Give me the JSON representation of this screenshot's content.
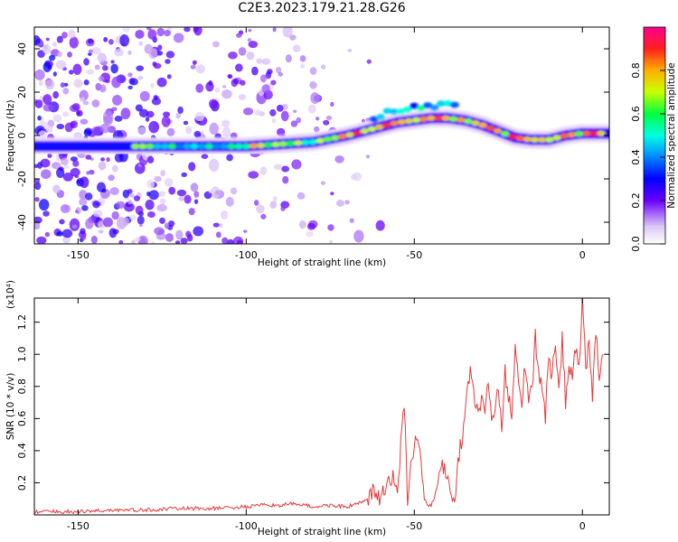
{
  "title": "C2E3.2023.179.21.28.G26",
  "colors": {
    "snr_line": "#e8383a",
    "axes": "#000000",
    "background": "#ffffff"
  },
  "chart_data": [
    {
      "type": "heatmap",
      "xlabel": "Height of straight line (km)",
      "ylabel": "Frequency (Hz)",
      "xlim": [
        -163,
        8
      ],
      "ylim": [
        -50,
        50
      ],
      "xticks": [
        "-150",
        "-100",
        "-50",
        "0"
      ],
      "yticks": [
        "-40",
        "-20",
        "0",
        "20",
        "40"
      ],
      "colorbar": {
        "label": "Normalized spectral amplitude",
        "range": [
          0,
          1
        ],
        "ticks": [
          "0.0",
          "0.2",
          "0.4",
          "0.6",
          "0.8"
        ],
        "colormap": "rainbow"
      },
      "ridge": {
        "x": [
          -163,
          -140,
          -133,
          -120,
          -100,
          -90,
          -80,
          -70,
          -60,
          -55,
          -50,
          -45,
          -40,
          -35,
          -30,
          -25,
          -20,
          -15,
          -10,
          -5,
          0,
          5,
          8
        ],
        "y": [
          -5,
          -5,
          -5,
          -5,
          -5,
          -4,
          -3,
          0,
          4,
          6,
          7,
          8,
          8,
          7,
          5,
          2,
          -1,
          -2,
          -2,
          0,
          1,
          1,
          1
        ]
      },
      "noise_region_x": [
        -163,
        -75
      ]
    },
    {
      "type": "line",
      "xlabel": "Height of straight line (km)",
      "ylabel": "SNR (10 * v/v)",
      "yunit": "(x10⁴)",
      "xlim": [
        -163,
        8
      ],
      "ylim": [
        0,
        1.35
      ],
      "xticks": [
        "-150",
        "-100",
        "-50",
        "0"
      ],
      "yticks": [
        "0.2",
        "0.4",
        "0.6",
        "0.8",
        "1.0",
        "1.2"
      ],
      "series": [
        {
          "x": [
            -163,
            -150,
            -140,
            -130,
            -120,
            -110,
            -100,
            -95,
            -90,
            -85,
            -80,
            -75,
            -70,
            -65,
            -62,
            -60,
            -58,
            -56,
            -55,
            -54,
            -53,
            -52,
            -51,
            -50,
            -49,
            -48,
            -47,
            -46,
            -45,
            -44,
            -43,
            -42,
            -41,
            -40,
            -39,
            -38,
            -37,
            -36,
            -35,
            -34,
            -33,
            -32,
            -31,
            -30,
            -29,
            -28,
            -27,
            -26,
            -25,
            -24,
            -23,
            -22,
            -21,
            -20,
            -19,
            -18,
            -17,
            -16,
            -15,
            -14,
            -13,
            -12,
            -11,
            -10,
            -9,
            -8,
            -7,
            -6,
            -5,
            -4,
            -3,
            -2,
            -1,
            0,
            1,
            2,
            3,
            4,
            5,
            6
          ],
          "y": [
            0.02,
            0.02,
            0.03,
            0.03,
            0.04,
            0.04,
            0.05,
            0.06,
            0.06,
            0.07,
            0.05,
            0.06,
            0.05,
            0.08,
            0.14,
            0.1,
            0.18,
            0.24,
            0.12,
            0.45,
            0.72,
            0.1,
            0.3,
            0.42,
            0.5,
            0.32,
            0.12,
            0.05,
            0.06,
            0.1,
            0.2,
            0.28,
            0.3,
            0.26,
            0.12,
            0.08,
            0.35,
            0.45,
            0.58,
            0.82,
            0.9,
            0.7,
            0.62,
            0.72,
            0.68,
            0.78,
            0.6,
            0.65,
            0.8,
            0.55,
            0.88,
            0.72,
            0.65,
            1.06,
            0.82,
            0.72,
            0.95,
            0.72,
            0.78,
            1.12,
            0.85,
            0.8,
            0.62,
            1.0,
            0.85,
            1.08,
            0.75,
            1.1,
            0.7,
            0.9,
            0.88,
            1.02,
            0.92,
            1.34,
            0.9,
            1.1,
            0.7,
            1.16,
            0.85,
            1.0
          ]
        }
      ]
    }
  ]
}
